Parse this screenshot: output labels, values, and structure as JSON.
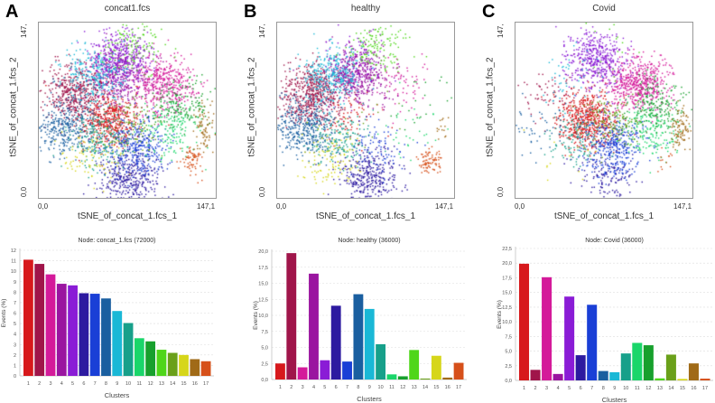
{
  "cluster_colors": [
    "#d7191c",
    "#a0154a",
    "#d41a9a",
    "#9a15a0",
    "#8a1cd6",
    "#2d1aa0",
    "#1a3fd6",
    "#1a5fa0",
    "#1ab8d6",
    "#17a08a",
    "#1ad66a",
    "#17a02d",
    "#4fd61a",
    "#6aa01a",
    "#d6d61a",
    "#a06a17",
    "#d6501a"
  ],
  "panels": [
    {
      "letter": "A",
      "scatter_title": "concat1.fcs",
      "y_axis": "tSNE_of_concat_1.fcs_2",
      "x_axis": "tSNE_of_concat_1.fcs_1",
      "y_max": "147,",
      "y_min": "0,0",
      "x_min": "0,0",
      "x_max": "147,1"
    },
    {
      "letter": "B",
      "scatter_title": "healthy",
      "y_axis": "tSNE_of_concat_1.fcs_2",
      "x_axis": "tSNE_of_concat_1.fcs_1",
      "y_max": "147,",
      "y_min": "0,0",
      "x_min": "0,0",
      "x_max": "147,1"
    },
    {
      "letter": "C",
      "scatter_title": "Covid",
      "y_axis": "tSNE_of_concat_1.fcs_2",
      "x_axis": "tSNE_of_concat_1.fcs_1",
      "y_max": "147,",
      "y_min": "0,0",
      "x_min": "0,0",
      "x_max": "147,1"
    }
  ],
  "chart_data": [
    {
      "type": "bar",
      "title": "Node: concat_1.fcs (72000)",
      "xlabel": "Clusters",
      "ylabel": "Events (%)",
      "categories": [
        "1",
        "2",
        "3",
        "4",
        "5",
        "6",
        "7",
        "8",
        "9",
        "10",
        "11",
        "12",
        "13",
        "14",
        "15",
        "16",
        "17"
      ],
      "values": [
        11.1,
        10.7,
        9.7,
        8.8,
        8.65,
        7.9,
        7.85,
        7.4,
        6.2,
        5.05,
        3.6,
        3.3,
        2.5,
        2.2,
        2.0,
        1.6,
        1.4
      ],
      "ylim": [
        0,
        12
      ],
      "yticks": [
        "0",
        "1",
        "2",
        "3",
        "4",
        "5",
        "6",
        "7",
        "8",
        "9",
        "10",
        "11",
        "12"
      ],
      "grid": true
    },
    {
      "type": "bar",
      "title": "Node: healthy  (36000)",
      "xlabel": "Clusters",
      "ylabel": "Events (%)",
      "categories": [
        "1",
        "2",
        "3",
        "4",
        "5",
        "6",
        "7",
        "8",
        "9",
        "10",
        "11",
        "12",
        "13",
        "14",
        "15",
        "16",
        "17"
      ],
      "values": [
        2.5,
        19.7,
        1.9,
        16.5,
        3.0,
        11.5,
        2.8,
        13.3,
        11.0,
        5.5,
        0.8,
        0.5,
        4.6,
        0.15,
        3.7,
        0.3,
        2.6
      ],
      "ylim": [
        0,
        20
      ],
      "yticks": [
        "0,0",
        "2,5",
        "5,0",
        "7,5",
        "10,0",
        "12,5",
        "15,0",
        "17,5",
        "20,0"
      ],
      "grid": true
    },
    {
      "type": "bar",
      "title": "Node: Covid (36000)",
      "xlabel": "Clusters",
      "ylabel": "Events (%)",
      "categories": [
        "1",
        "2",
        "3",
        "4",
        "5",
        "6",
        "7",
        "8",
        "9",
        "10",
        "11",
        "12",
        "13",
        "14",
        "15",
        "16",
        "17"
      ],
      "values": [
        19.9,
        1.8,
        17.6,
        1.1,
        14.3,
        4.3,
        12.9,
        1.6,
        1.4,
        4.6,
        6.4,
        6.0,
        0.35,
        4.4,
        0.25,
        2.9,
        0.3
      ],
      "ylim": [
        0,
        22.5
      ],
      "yticks": [
        "0,0",
        "2,5",
        "5,0",
        "7,5",
        "10,0",
        "12,5",
        "15,0",
        "17,5",
        "20,0",
        "22,5"
      ],
      "grid": true
    }
  ]
}
